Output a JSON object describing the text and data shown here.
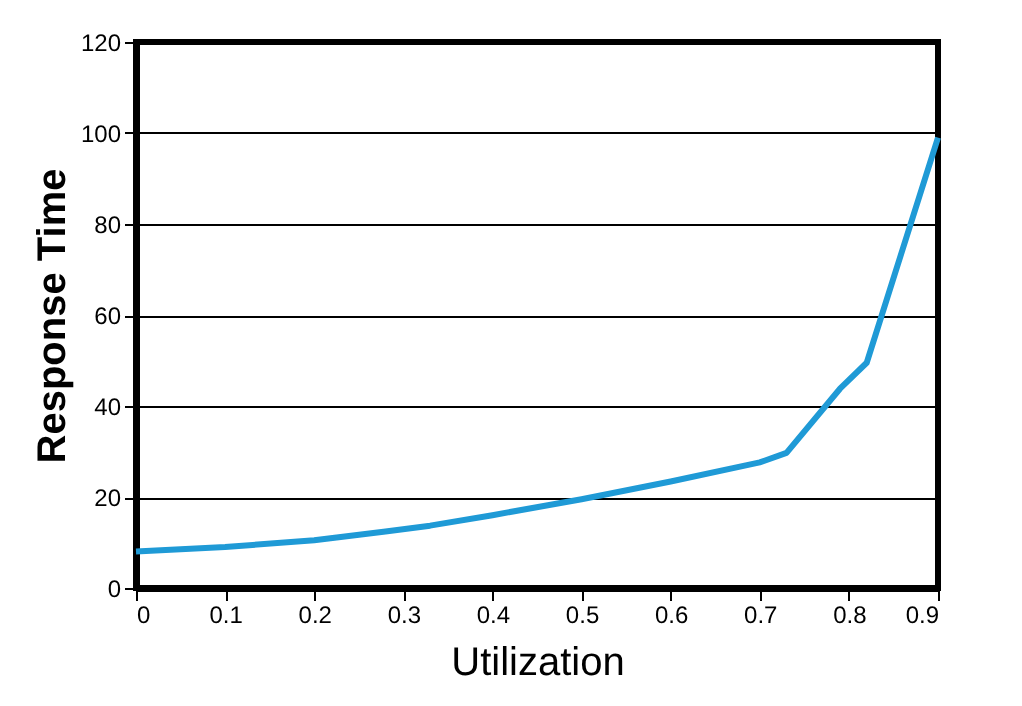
{
  "chart_data": {
    "type": "line",
    "xlabel": "Utilization",
    "ylabel": "Response Time",
    "x": [
      0,
      0.1,
      0.2,
      0.28,
      0.33,
      0.4,
      0.5,
      0.6,
      0.7,
      0.73,
      0.79,
      0.82,
      0.9
    ],
    "series": [
      {
        "color": "#1f9ad6",
        "values": [
          8,
          9,
          10.5,
          12.4,
          13.7,
          16,
          19.5,
          23.4,
          27.6,
          29.7,
          43.8,
          49.5,
          99
        ]
      }
    ],
    "xlim": [
      0,
      0.9
    ],
    "xticks": [
      0,
      0.1,
      0.2,
      0.3,
      0.4,
      0.5,
      0.6,
      0.7,
      0.8,
      0.9
    ],
    "ylim": [
      0,
      120
    ],
    "yticks": [
      0,
      20,
      40,
      60,
      80,
      100,
      120
    ],
    "grid": "y",
    "legend": false,
    "marker": "none",
    "line_style": "solid"
  }
}
